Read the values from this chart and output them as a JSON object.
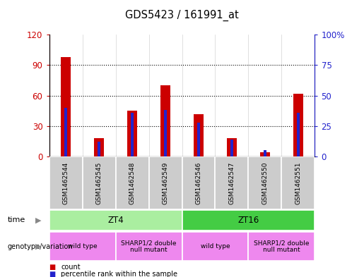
{
  "title": "GDS5423 / 161991_at",
  "samples": [
    "GSM1462544",
    "GSM1462545",
    "GSM1462548",
    "GSM1462549",
    "GSM1462546",
    "GSM1462547",
    "GSM1462550",
    "GSM1462551"
  ],
  "counts": [
    98,
    18,
    45,
    70,
    42,
    18,
    4,
    62
  ],
  "percentile_ranks": [
    40,
    12,
    36,
    38,
    28,
    14,
    5,
    36
  ],
  "ylim_left": [
    0,
    120
  ],
  "ylim_right": [
    0,
    100
  ],
  "yticks_left": [
    0,
    30,
    60,
    90,
    120
  ],
  "yticks_right": [
    0,
    25,
    50,
    75,
    100
  ],
  "ytick_labels_left": [
    "0",
    "30",
    "60",
    "90",
    "120"
  ],
  "ytick_labels_right": [
    "0",
    "25",
    "50",
    "75",
    "100%"
  ],
  "bar_color_count": "#cc0000",
  "bar_color_percentile": "#2222cc",
  "time_row": [
    {
      "label": "ZT4",
      "start": 0,
      "end": 4,
      "color": "#aaeea0"
    },
    {
      "label": "ZT16",
      "start": 4,
      "end": 8,
      "color": "#44cc44"
    }
  ],
  "genotype_row": [
    {
      "label": "wild type",
      "start": 0,
      "end": 2,
      "color": "#ee88ee"
    },
    {
      "label": "SHARP1/2 double\nnull mutant",
      "start": 2,
      "end": 4,
      "color": "#ee88ee"
    },
    {
      "label": "wild type",
      "start": 4,
      "end": 6,
      "color": "#ee88ee"
    },
    {
      "label": "SHARP1/2 double\nnull mutant",
      "start": 6,
      "end": 8,
      "color": "#ee88ee"
    }
  ],
  "legend_count_label": "count",
  "legend_percentile_label": "percentile rank within the sample",
  "time_label": "time",
  "genotype_label": "genotype/variation",
  "col_bg_color": "#cccccc",
  "red_bar_width": 0.3,
  "blue_bar_width": 0.08
}
